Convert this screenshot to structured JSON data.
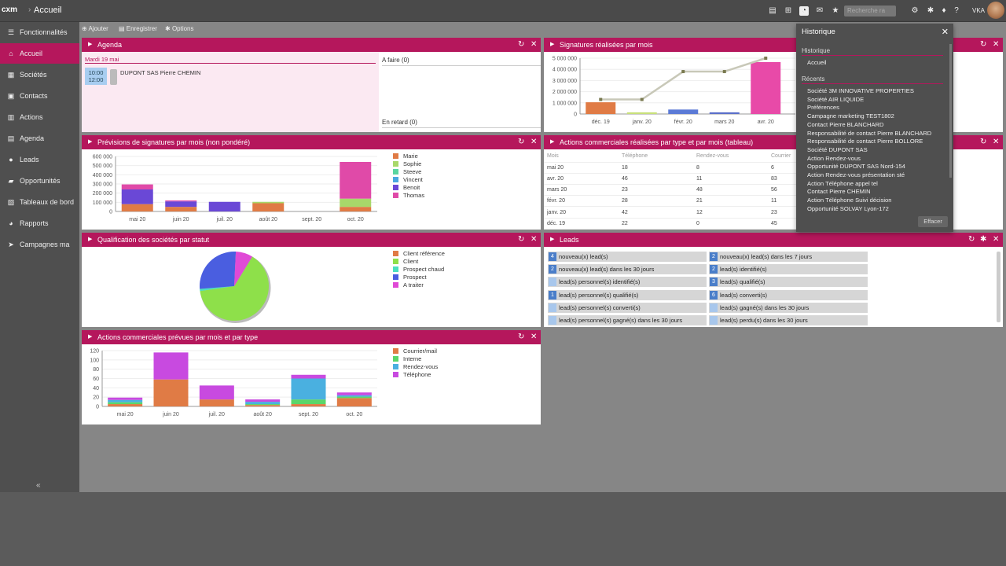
{
  "topbar": {
    "logo": "cxm",
    "separator": "›",
    "home": "Accueil",
    "search_placeholder": "Recherche ra",
    "user": "VKA"
  },
  "sidebar": {
    "items": [
      {
        "label": "Fonctionnalités",
        "icon": "menu-icon"
      },
      {
        "label": "Accueil",
        "icon": "home-icon",
        "active": true
      },
      {
        "label": "Sociétés",
        "icon": "building-icon"
      },
      {
        "label": "Contacts",
        "icon": "contacts-icon"
      },
      {
        "label": "Actions",
        "icon": "calendar-icon"
      },
      {
        "label": "Agenda",
        "icon": "agenda-icon"
      },
      {
        "label": "Leads",
        "icon": "leads-icon"
      },
      {
        "label": "Opportunités",
        "icon": "briefcase-icon"
      },
      {
        "label": "Tableaux de bord",
        "icon": "dashboard-icon"
      },
      {
        "label": "Rapports",
        "icon": "pie-icon"
      },
      {
        "label": "Campagnes ma",
        "icon": "send-icon"
      }
    ],
    "collapse": "«"
  },
  "actionbar": {
    "add": "Ajouter",
    "save": "Enregistrer",
    "options": "Options"
  },
  "agenda": {
    "title": "Agenda",
    "day": "Mardi 19 mai",
    "time_start": "10:00",
    "time_end": "12:00",
    "event": "DUPONT SAS Pierre CHEMIN",
    "todo": "A faire (0)",
    "late": "En retard (0)"
  },
  "signatures": {
    "title": "Signatures réalisées par mois",
    "chart_data": {
      "type": "bar",
      "categories": [
        "déc. 19",
        "janv. 20",
        "févr. 20",
        "mars 20",
        "avr. 20"
      ],
      "yticks": [
        "5 000 000",
        "4 000 000",
        "3 000 000",
        "2 000 000",
        "1 000 000",
        "0"
      ],
      "ylim": [
        0,
        5000000
      ],
      "bars": [
        1050000,
        150000,
        400000,
        150000,
        4650000
      ],
      "bar_colors": [
        "#e07b45",
        "#c8e07a",
        "#5b7ad6",
        "#5b6fc9",
        "#e84aa8"
      ],
      "line": [
        1300000,
        1300000,
        3800000,
        3800000,
        5000000
      ],
      "line_color": "#c8c8b8"
    }
  },
  "forecast": {
    "title": "Prévisions de signatures par mois (non pondéré)",
    "chart_data": {
      "type": "bar",
      "stacked": true,
      "categories": [
        "mai 20",
        "juin 20",
        "juil. 20",
        "août 20",
        "sept. 20",
        "oct. 20"
      ],
      "yticks": [
        "600 000",
        "500 000",
        "400 000",
        "300 000",
        "200 000",
        "100 000",
        "0"
      ],
      "ylim": [
        0,
        600000
      ],
      "series": [
        {
          "name": "Marie",
          "color": "#e07b45",
          "values": [
            80000,
            50000,
            0,
            90000,
            0,
            50000
          ]
        },
        {
          "name": "Sophie",
          "color": "#a8d86a",
          "values": [
            0,
            0,
            0,
            15000,
            0,
            90000
          ]
        },
        {
          "name": "Steeve",
          "color": "#5ad6a0",
          "values": [
            0,
            0,
            0,
            0,
            0,
            0
          ]
        },
        {
          "name": "Vincent",
          "color": "#4aa8e0",
          "values": [
            0,
            0,
            0,
            0,
            0,
            0
          ]
        },
        {
          "name": "Benoit",
          "color": "#6a48d6",
          "values": [
            160000,
            60000,
            105000,
            0,
            0,
            0
          ]
        },
        {
          "name": "Thomas",
          "color": "#e04aa8",
          "values": [
            55000,
            10000,
            0,
            0,
            0,
            400000
          ]
        }
      ]
    }
  },
  "actions_table": {
    "title": "Actions commerciales réalisées par type et par mois (tableau)",
    "columns": [
      "Mois",
      "Téléphone",
      "Rendez-vous",
      "Courrier"
    ],
    "rows": [
      [
        "mai 20",
        "18",
        "8",
        "6"
      ],
      [
        "avr. 20",
        "46",
        "11",
        "83"
      ],
      [
        "mars 20",
        "23",
        "48",
        "56"
      ],
      [
        "févr. 20",
        "28",
        "21",
        "11"
      ],
      [
        "janv. 20",
        "42",
        "12",
        "23"
      ],
      [
        "déc. 19",
        "22",
        "0",
        "45"
      ]
    ]
  },
  "qualification": {
    "title": "Qualification des sociétés par statut",
    "chart_data": {
      "type": "pie",
      "slices": [
        {
          "name": "Client référence",
          "color": "#e07b45",
          "value": 0
        },
        {
          "name": "Client",
          "color": "#8ee04a",
          "value": 64
        },
        {
          "name": "Prospect chaud",
          "color": "#4ae0c0",
          "value": 1
        },
        {
          "name": "Prospect",
          "color": "#4a5ee0",
          "value": 27
        },
        {
          "name": "A traiter",
          "color": "#e04ad6",
          "value": 8
        }
      ]
    }
  },
  "leads": {
    "title": "Leads",
    "items": [
      {
        "count": "4",
        "label": "nouveau(x) lead(s)",
        "col": 0
      },
      {
        "count": "2",
        "label": "nouveau(x) lead(s) dans les 7 jours",
        "col": 1
      },
      {
        "count": "2",
        "label": "nouveau(x) lead(s) dans les 30 jours",
        "col": 0
      },
      {
        "count": "2",
        "label": "lead(s) identifié(s)",
        "col": 1
      },
      {
        "count": "0",
        "label": "lead(s) personnel(s) identifié(s)",
        "col": 0
      },
      {
        "count": "3",
        "label": "lead(s) qualifié(s)",
        "col": 1
      },
      {
        "count": "1",
        "label": "lead(s) personnel(s) qualifié(s)",
        "col": 0
      },
      {
        "count": "6",
        "label": "lead(s) converti(s)",
        "col": 1
      },
      {
        "count": "0",
        "label": "lead(s) personnel(s) converti(s)",
        "col": 0
      },
      {
        "count": "0",
        "label": "lead(s) gagné(s) dans les 30 jours",
        "col": 1
      },
      {
        "count": "0",
        "label": "lead(s) personnel(s) gagné(s) dans les 30 jours",
        "col": 0
      },
      {
        "count": "0",
        "label": "lead(s) perdu(s) dans les 30 jours",
        "col": 1
      }
    ]
  },
  "planned": {
    "title": "Actions commerciales prévues par mois et par type",
    "chart_data": {
      "type": "bar",
      "stacked": true,
      "categories": [
        "mai 20",
        "juin 20",
        "juil. 20",
        "août 20",
        "sept. 20",
        "oct. 20"
      ],
      "yticks": [
        "120",
        "100",
        "80",
        "60",
        "40",
        "20",
        "0"
      ],
      "ylim": [
        0,
        120
      ],
      "series": [
        {
          "name": "Courrier/mail",
          "color": "#e07b45",
          "values": [
            5,
            58,
            15,
            3,
            5,
            18
          ]
        },
        {
          "name": "Interne",
          "color": "#5ad66a",
          "values": [
            4,
            0,
            0,
            2,
            10,
            3
          ]
        },
        {
          "name": "Rendez-vous",
          "color": "#4ab0e0",
          "values": [
            5,
            0,
            0,
            5,
            45,
            3
          ]
        },
        {
          "name": "Téléphone",
          "color": "#c84ae0",
          "values": [
            5,
            58,
            30,
            5,
            8,
            6
          ]
        }
      ]
    }
  },
  "history": {
    "title": "Historique",
    "section_history": "Historique",
    "history_items": [
      "Accueil"
    ],
    "section_recent": "Récents",
    "recent_items": [
      "Société 3M INNOVATIVE PROPERTIES",
      "Société AIR LIQUIDE",
      "Préférences",
      "Campagne marketing TEST1802",
      "Contact Pierre BLANCHARD",
      "Responsabilité de contact Pierre BLANCHARD",
      "Responsabilité de contact Pierre BOLLORE",
      "Société DUPONT SAS",
      "Action Rendez-vous",
      "Opportunité DUPONT SAS Nord-154",
      "Action Rendez-vous présentation sté",
      "Action Téléphone appel tel",
      "Contact Pierre CHEMIN",
      "Action Téléphone Suivi décision",
      "Opportunité SOLVAY Lyon-172"
    ],
    "clear": "Effacer"
  }
}
